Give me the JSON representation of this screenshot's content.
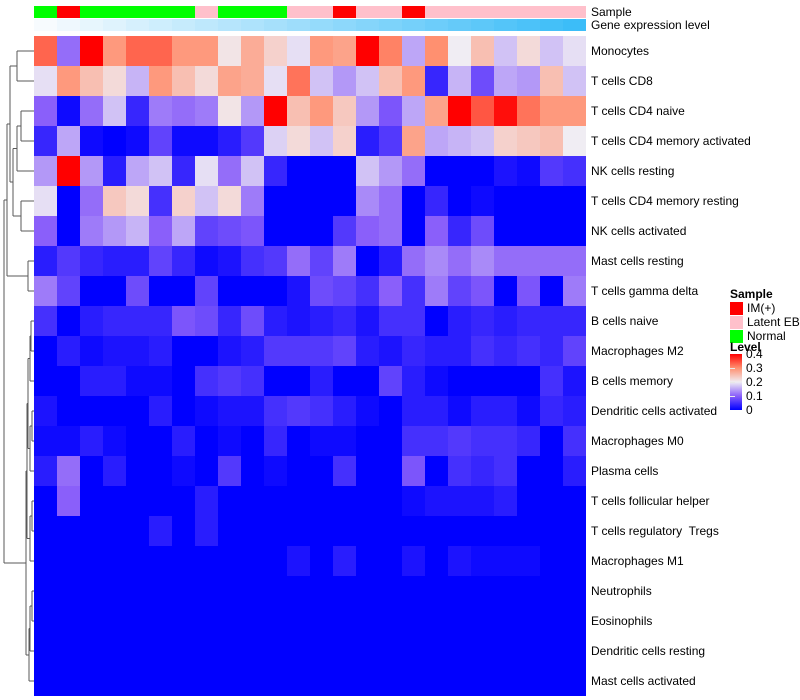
{
  "annotations": {
    "sample": {
      "label": "Sample",
      "values": [
        "Normal",
        "IM(+)",
        "Normal",
        "Normal",
        "Normal",
        "Normal",
        "Normal",
        "Latent EBV",
        "Normal",
        "Normal",
        "Normal",
        "Latent EBV",
        "Latent EBV",
        "IM(+)",
        "Latent EBV",
        "Latent EBV",
        "IM(+)",
        "Latent EBV",
        "Latent EBV",
        "Latent EBV",
        "Latent EBV",
        "Latent EBV",
        "Latent EBV",
        "Latent EBV"
      ],
      "colors": {
        "IM(+)": "#FF0000",
        "Latent EBV": "#FFC0CB",
        "Normal": "#00FF00"
      }
    },
    "expression": {
      "label": "Gene expression level",
      "gradient_start": "#F7FBFE",
      "gradient_end": "#3CBDF8",
      "n_steps": 24
    }
  },
  "chart_data": {
    "type": "heatmap",
    "n_cols": 24,
    "value_range": [
      0,
      0.4
    ],
    "colormap_anchors": [
      [
        0,
        "#0000FF"
      ],
      [
        0.1,
        "#8A5FFA"
      ],
      [
        0.2,
        "#F0EDF3"
      ],
      [
        0.3,
        "#FF9070"
      ],
      [
        0.4,
        "#FF0000"
      ]
    ],
    "rows": [
      "Monocytes",
      "T cells CD8",
      "T cells CD4 naive",
      "T cells CD4 memory activated",
      "NK cells resting",
      "T cells CD4 memory resting",
      "NK cells activated",
      "Mast cells resting",
      "T cells gamma delta",
      "B cells naive",
      "Macrophages M2",
      "B cells memory",
      "Dendritic cells activated",
      "Macrophages M0",
      "Plasma cells",
      "T cells follicular helper",
      "T cells regulatory  Tregs",
      "Macrophages M1",
      "Neutrophils",
      "Eosinophils",
      "Dendritic cells resting",
      "Mast cells activated"
    ],
    "values": [
      [
        0.33,
        0.11,
        0.4,
        0.29,
        0.33,
        0.33,
        0.29,
        0.29,
        0.21,
        0.27,
        0.23,
        0.19,
        0.29,
        0.28,
        0.4,
        0.31,
        0.15,
        0.3,
        0.2,
        0.25,
        0.17,
        0.22,
        0.17,
        0.19
      ],
      [
        0.19,
        0.29,
        0.25,
        0.22,
        0.16,
        0.29,
        0.25,
        0.22,
        0.28,
        0.27,
        0.19,
        0.32,
        0.17,
        0.14,
        0.17,
        0.25,
        0.29,
        0.04,
        0.16,
        0.08,
        0.15,
        0.14,
        0.25,
        0.17
      ],
      [
        0.1,
        0.01,
        0.11,
        0.17,
        0.04,
        0.12,
        0.11,
        0.12,
        0.21,
        0.14,
        0.4,
        0.25,
        0.29,
        0.24,
        0.14,
        0.09,
        0.15,
        0.28,
        0.4,
        0.34,
        0.39,
        0.32,
        0.29,
        0.29
      ],
      [
        0.04,
        0.15,
        0.01,
        0,
        0.01,
        0.07,
        0.01,
        0.01,
        0.03,
        0.06,
        0.18,
        0.22,
        0.17,
        0.23,
        0.03,
        0.06,
        0.28,
        0.15,
        0.16,
        0.17,
        0.23,
        0.24,
        0.25,
        0.2
      ],
      [
        0.14,
        0.4,
        0.14,
        0.03,
        0.15,
        0.17,
        0.04,
        0.19,
        0.11,
        0.17,
        0.04,
        0,
        0,
        0,
        0.17,
        0.14,
        0.11,
        0,
        0,
        0,
        0.02,
        0.01,
        0.06,
        0.05
      ],
      [
        0.19,
        0,
        0.11,
        0.24,
        0.22,
        0.05,
        0.23,
        0.17,
        0.22,
        0.12,
        0,
        0,
        0,
        0,
        0.13,
        0.11,
        0,
        0.04,
        0,
        0.01,
        0,
        0,
        0,
        0
      ],
      [
        0.1,
        0,
        0.12,
        0.14,
        0.16,
        0.1,
        0.15,
        0.07,
        0.08,
        0.09,
        0,
        0,
        0,
        0.06,
        0.1,
        0.11,
        0,
        0.1,
        0.04,
        0.08,
        0,
        0,
        0,
        0
      ],
      [
        0.03,
        0.06,
        0.04,
        0.03,
        0.03,
        0.07,
        0.04,
        0.01,
        0.02,
        0.05,
        0.06,
        0.11,
        0.07,
        0.12,
        0,
        0.03,
        0.11,
        0.13,
        0.11,
        0.13,
        0.11,
        0.11,
        0.11,
        0.11
      ],
      [
        0.12,
        0.07,
        0,
        0,
        0.08,
        0,
        0,
        0.07,
        0,
        0,
        0,
        0.02,
        0.08,
        0.07,
        0.05,
        0.1,
        0.05,
        0.12,
        0.07,
        0.09,
        0,
        0.09,
        0,
        0.12
      ],
      [
        0.05,
        0,
        0.03,
        0.04,
        0.04,
        0.04,
        0.09,
        0.08,
        0.04,
        0.08,
        0.03,
        0.02,
        0.03,
        0.04,
        0.02,
        0.05,
        0.05,
        0,
        0.03,
        0.04,
        0.03,
        0.04,
        0.04,
        0.04
      ],
      [
        0,
        0.03,
        0.01,
        0.02,
        0.02,
        0.03,
        0,
        0,
        0.02,
        0.03,
        0.06,
        0.06,
        0.06,
        0.07,
        0.03,
        0.02,
        0.04,
        0.03,
        0.03,
        0.05,
        0.04,
        0.05,
        0.04,
        0.07
      ],
      [
        0,
        0,
        0.03,
        0.03,
        0.01,
        0.01,
        0,
        0.05,
        0.06,
        0.05,
        0,
        0,
        0.03,
        0,
        0,
        0.07,
        0.03,
        0.01,
        0,
        0,
        0,
        0,
        0.05,
        0.02
      ],
      [
        0.02,
        0,
        0,
        0,
        0,
        0.03,
        0,
        0.01,
        0.02,
        0.02,
        0.05,
        0.06,
        0.05,
        0.03,
        0.01,
        0,
        0.03,
        0.03,
        0.01,
        0.03,
        0.03,
        0.01,
        0.04,
        0.03
      ],
      [
        0.01,
        0.01,
        0.03,
        0.01,
        0,
        0,
        0.03,
        0,
        0.01,
        0,
        0.04,
        0,
        0.01,
        0.01,
        0,
        0,
        0.05,
        0.05,
        0.06,
        0.05,
        0.05,
        0.04,
        0,
        0.05
      ],
      [
        0.03,
        0.11,
        0,
        0.03,
        0,
        0,
        0.01,
        0,
        0.06,
        0,
        0.01,
        0,
        0,
        0.05,
        0,
        0,
        0.09,
        0,
        0.05,
        0.04,
        0.05,
        0,
        0,
        0.03
      ],
      [
        0,
        0.1,
        0,
        0,
        0,
        0,
        0,
        0.03,
        0,
        0,
        0,
        0,
        0,
        0,
        0,
        0,
        0.01,
        0.02,
        0.02,
        0.02,
        0.03,
        0,
        0,
        0
      ],
      [
        0,
        0,
        0,
        0,
        0,
        0.03,
        0,
        0.03,
        0,
        0,
        0,
        0,
        0,
        0,
        0,
        0,
        0,
        0,
        0,
        0,
        0,
        0,
        0,
        0
      ],
      [
        0,
        0,
        0,
        0,
        0,
        0,
        0,
        0,
        0,
        0,
        0,
        0.02,
        0,
        0.03,
        0,
        0,
        0.02,
        0,
        0.02,
        0.01,
        0.01,
        0.01,
        0,
        0
      ],
      [
        0,
        0,
        0,
        0,
        0,
        0,
        0,
        0,
        0,
        0,
        0,
        0,
        0,
        0,
        0,
        0,
        0,
        0,
        0,
        0,
        0,
        0,
        0,
        0
      ],
      [
        0,
        0,
        0,
        0,
        0,
        0,
        0,
        0,
        0,
        0,
        0,
        0,
        0,
        0,
        0,
        0,
        0,
        0,
        0,
        0,
        0,
        0,
        0,
        0
      ],
      [
        0,
        0,
        0,
        0,
        0,
        0,
        0,
        0,
        0,
        0,
        0,
        0,
        0,
        0,
        0,
        0,
        0,
        0,
        0,
        0,
        0,
        0,
        0,
        0
      ],
      [
        0,
        0,
        0,
        0,
        0,
        0,
        0,
        0,
        0,
        0,
        0,
        0,
        0,
        0,
        0,
        0,
        0,
        0,
        0,
        0,
        0,
        0,
        0,
        0
      ]
    ]
  },
  "legend": {
    "sample": {
      "title": "Sample",
      "items": [
        {
          "label": "IM(+)",
          "color": "#FF0000"
        },
        {
          "label": "Latent EBV",
          "color": "#FFC0CB"
        },
        {
          "label": "Normal",
          "color": "#00FF00"
        }
      ]
    },
    "level": {
      "title": "Level",
      "ticks": [
        "0.4",
        "0.3",
        "0.2",
        "0.1",
        "0"
      ]
    }
  },
  "dendrogram": {
    "color": "#595959",
    "segments": [
      [
        17,
        51,
        17,
        81
      ],
      [
        17,
        51,
        34,
        51
      ],
      [
        17,
        81,
        34,
        81
      ],
      [
        21,
        111,
        21,
        141
      ],
      [
        21,
        111,
        34,
        111
      ],
      [
        21,
        141,
        34,
        141
      ],
      [
        17,
        126,
        17,
        171
      ],
      [
        17,
        126,
        21,
        126
      ],
      [
        17,
        171,
        34,
        171
      ],
      [
        21,
        201,
        21,
        231
      ],
      [
        21,
        201,
        34,
        201
      ],
      [
        21,
        231,
        34,
        231
      ],
      [
        13,
        148.5,
        13,
        216
      ],
      [
        13,
        148.5,
        17,
        148.5
      ],
      [
        13,
        216,
        21,
        216
      ],
      [
        10,
        66,
        10,
        182
      ],
      [
        10,
        66,
        17,
        66
      ],
      [
        10,
        182,
        13,
        182
      ],
      [
        28,
        261,
        28,
        291
      ],
      [
        28,
        261,
        34,
        261
      ],
      [
        28,
        291,
        34,
        291
      ],
      [
        7,
        124,
        7,
        276
      ],
      [
        7,
        124,
        10,
        124
      ],
      [
        7,
        276,
        28,
        276
      ],
      [
        31,
        321,
        31,
        351
      ],
      [
        31,
        321,
        34,
        321
      ],
      [
        31,
        351,
        34,
        351
      ],
      [
        30,
        336,
        30,
        381
      ],
      [
        30,
        336,
        31,
        336
      ],
      [
        30,
        381,
        34,
        381
      ],
      [
        32,
        411,
        32,
        441
      ],
      [
        32,
        411,
        34,
        411
      ],
      [
        32,
        441,
        34,
        441
      ],
      [
        30,
        426,
        30,
        471
      ],
      [
        30,
        426,
        32,
        426
      ],
      [
        30,
        471,
        34,
        471
      ],
      [
        28,
        358.5,
        28,
        448.5
      ],
      [
        28,
        358.5,
        30,
        358.5
      ],
      [
        28,
        448.5,
        30,
        448.5
      ],
      [
        32,
        501,
        32,
        531
      ],
      [
        32,
        501,
        34,
        501
      ],
      [
        32,
        531,
        34,
        531
      ],
      [
        30,
        516,
        30,
        561
      ],
      [
        30,
        516,
        32,
        516
      ],
      [
        30,
        561,
        34,
        561
      ],
      [
        27,
        403.5,
        27,
        538.5
      ],
      [
        27,
        403.5,
        28,
        403.5
      ],
      [
        27,
        538.5,
        30,
        538.5
      ],
      [
        32,
        591,
        32,
        621
      ],
      [
        32,
        591,
        34,
        591
      ],
      [
        32,
        621,
        34,
        621
      ],
      [
        30,
        606,
        30,
        651
      ],
      [
        30,
        606,
        32,
        606
      ],
      [
        30,
        651,
        34,
        651
      ],
      [
        29,
        628.5,
        29,
        681
      ],
      [
        29,
        628.5,
        30,
        628.5
      ],
      [
        29,
        681,
        34,
        681
      ],
      [
        26,
        471,
        26,
        654.8
      ],
      [
        26,
        471,
        27,
        471
      ],
      [
        26,
        654.8,
        29,
        654.8
      ],
      [
        4,
        200,
        4,
        562.9
      ],
      [
        4,
        200,
        7,
        200
      ],
      [
        4,
        562.9,
        26,
        562.9
      ]
    ]
  }
}
